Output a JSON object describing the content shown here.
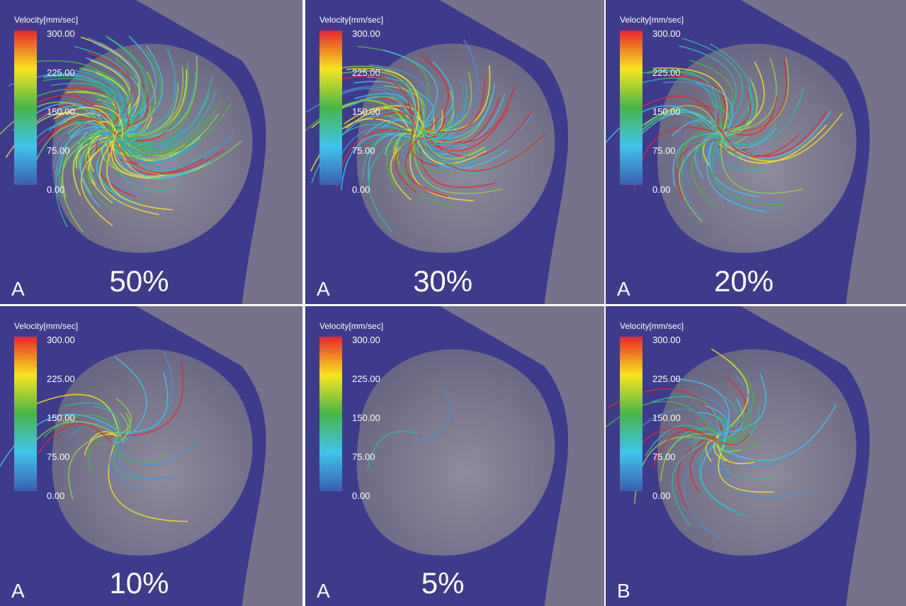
{
  "panels": [
    {
      "legend_title": "Velocity[mm/sec]",
      "scale": [
        "300.00",
        "225.00",
        "150.00",
        "75.00",
        "0.00"
      ],
      "letter": "A",
      "caption": "50%"
    },
    {
      "legend_title": "Velocity[mm/sec]",
      "scale": [
        "300.00",
        "225.00",
        "150.00",
        "75.00",
        "0.00"
      ],
      "letter": "A",
      "caption": "30%"
    },
    {
      "legend_title": "Velocity[mm/sec]",
      "scale": [
        "300.00",
        "225.00",
        "150.00",
        "75.00",
        "0.00"
      ],
      "letter": "A",
      "caption": "20%"
    },
    {
      "legend_title": "Velocity[mm/sec]",
      "scale": [
        "300.00",
        "225.00",
        "150.00",
        "75.00",
        "0.00"
      ],
      "letter": "A",
      "caption": "10%"
    },
    {
      "legend_title": "Velocity[mm/sec]",
      "scale": [
        "300.00",
        "225.00",
        "150.00",
        "75.00",
        "0.00"
      ],
      "letter": "A",
      "caption": "5%"
    },
    {
      "legend_title": "Velocity[mm/sec]",
      "scale": [
        "300.00",
        "225.00",
        "150.00",
        "75.00",
        "0.00"
      ],
      "letter": "B"
    }
  ]
}
